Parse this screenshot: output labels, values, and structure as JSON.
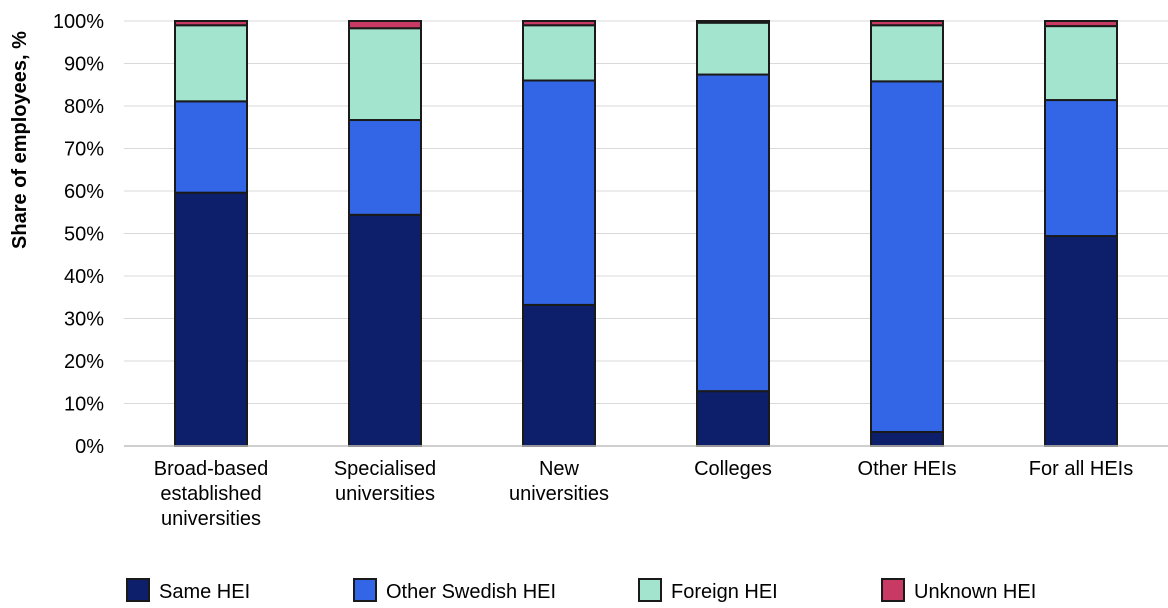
{
  "chart_data": {
    "type": "bar",
    "stacked": true,
    "ylabel": "Share of employees, %",
    "ylim": [
      0,
      100
    ],
    "y_ticks": [
      "0%",
      "10%",
      "20%",
      "30%",
      "40%",
      "50%",
      "60%",
      "70%",
      "80%",
      "90%",
      "100%"
    ],
    "grid": true,
    "legend_position": "bottom",
    "categories": [
      [
        "Broad-based",
        "established",
        "universities"
      ],
      [
        "Specialised",
        "universities"
      ],
      [
        "New",
        "universities"
      ],
      [
        "Colleges"
      ],
      [
        "Other HEIs"
      ],
      [
        "For all HEIs"
      ]
    ],
    "series": [
      {
        "name": "Same HEI",
        "color": "#0d1f6b",
        "values": [
          59.6,
          54.4,
          33.2,
          12.9,
          3.3,
          49.4
        ]
      },
      {
        "name": "Other Swedish HEI",
        "color": "#3366e6",
        "values": [
          21.5,
          22.3,
          52.8,
          74.5,
          82.5,
          32.0
        ]
      },
      {
        "name": "Foreign HEI",
        "color": "#a3e4cf",
        "values": [
          17.9,
          21.6,
          13.0,
          12.2,
          13.2,
          17.4
        ]
      },
      {
        "name": "Unknown HEI",
        "color": "#c83964",
        "values": [
          1.0,
          1.7,
          1.0,
          0.4,
          1.0,
          1.2
        ]
      }
    ]
  }
}
